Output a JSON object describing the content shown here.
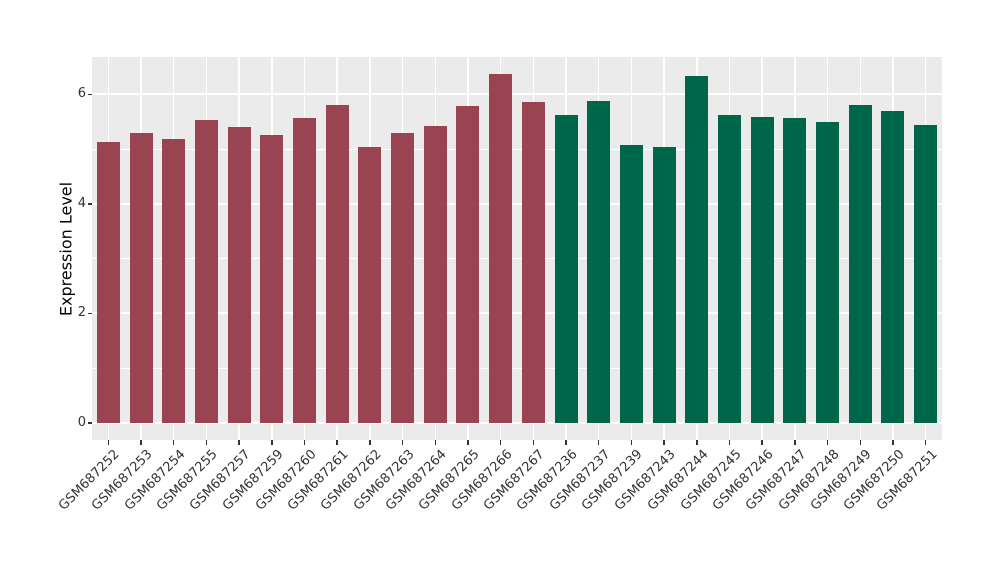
{
  "chart_data": {
    "type": "bar",
    "title": "",
    "xlabel": "",
    "ylabel": "Expression Level",
    "ylim": [
      -0.31,
      6.68
    ],
    "y_major_ticks": [
      0,
      2,
      4,
      6
    ],
    "y_minor_gridlines": [
      1,
      3,
      5
    ],
    "grid": "on",
    "legend_position": "none",
    "panel_bg": "#EBEBEB",
    "gridline_color": "#FFFFFF",
    "tick_color": "#333333",
    "axis_title_color": "#000000",
    "group_colors": {
      "maroon": "#9A4453",
      "green": "#00664A"
    },
    "bars": [
      {
        "label": "GSM687252",
        "value": 5.13,
        "group": "maroon"
      },
      {
        "label": "GSM687253",
        "value": 5.29,
        "group": "maroon"
      },
      {
        "label": "GSM687254",
        "value": 5.19,
        "group": "maroon"
      },
      {
        "label": "GSM687255",
        "value": 5.53,
        "group": "maroon"
      },
      {
        "label": "GSM687257",
        "value": 5.41,
        "group": "maroon"
      },
      {
        "label": "GSM687259",
        "value": 5.25,
        "group": "maroon"
      },
      {
        "label": "GSM687260",
        "value": 5.56,
        "group": "maroon"
      },
      {
        "label": "GSM687261",
        "value": 5.81,
        "group": "maroon"
      },
      {
        "label": "GSM687262",
        "value": 5.03,
        "group": "maroon"
      },
      {
        "label": "GSM687263",
        "value": 5.3,
        "group": "maroon"
      },
      {
        "label": "GSM687264",
        "value": 5.42,
        "group": "maroon"
      },
      {
        "label": "GSM687265",
        "value": 5.79,
        "group": "maroon"
      },
      {
        "label": "GSM687266",
        "value": 6.37,
        "group": "maroon"
      },
      {
        "label": "GSM687267",
        "value": 5.86,
        "group": "maroon"
      },
      {
        "label": "GSM687236",
        "value": 5.62,
        "group": "green"
      },
      {
        "label": "GSM687237",
        "value": 5.87,
        "group": "green"
      },
      {
        "label": "GSM687239",
        "value": 5.07,
        "group": "green"
      },
      {
        "label": "GSM687243",
        "value": 5.03,
        "group": "green"
      },
      {
        "label": "GSM687244",
        "value": 6.34,
        "group": "green"
      },
      {
        "label": "GSM687245",
        "value": 5.62,
        "group": "green"
      },
      {
        "label": "GSM687246",
        "value": 5.58,
        "group": "green"
      },
      {
        "label": "GSM687247",
        "value": 5.57,
        "group": "green"
      },
      {
        "label": "GSM687248",
        "value": 5.5,
        "group": "green"
      },
      {
        "label": "GSM687249",
        "value": 5.8,
        "group": "green"
      },
      {
        "label": "GSM687250",
        "value": 5.7,
        "group": "green"
      },
      {
        "label": "GSM687251",
        "value": 5.44,
        "group": "green"
      }
    ]
  }
}
